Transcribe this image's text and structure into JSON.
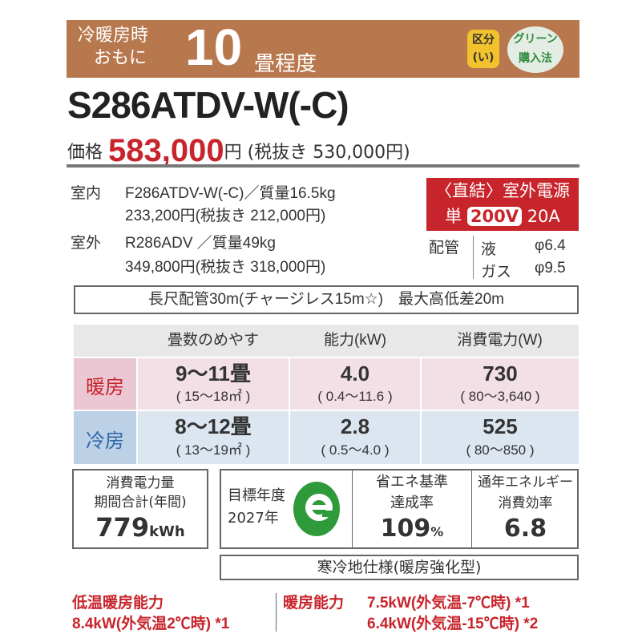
{
  "header": {
    "line1": "冷暖房時",
    "line2": "おもに",
    "tatami": "10",
    "tatami_unit": "畳程度",
    "badge_category": [
      "区分",
      "(い)"
    ],
    "badge_green": [
      "グリーン",
      "購入法"
    ]
  },
  "model": "S286ATDV-W(-C)",
  "price": {
    "label": "価格",
    "value": "583,000",
    "yen": "円",
    "tax_excl": "(税抜き 530,000円)"
  },
  "indoor": {
    "label": "室内",
    "model": "F286ATDV-W(-C)／質量16.5kg",
    "price": "233,200円(税抜き 212,000円)"
  },
  "outdoor": {
    "label": "室外",
    "model": "R286ADV ／質量49kg",
    "price": "349,800円(税抜き 318,000円)"
  },
  "power": {
    "line1": "〈直結〉室外電源",
    "phase": "単",
    "voltage": "200V",
    "amp": "20A"
  },
  "piping": {
    "label": "配管",
    "liquid_label": "液",
    "liquid": "φ6.4",
    "gas_label": "ガス",
    "gas": "φ9.5"
  },
  "long_pipe": "長尺配管30m(チャージレス15m☆)　最大高低差20m",
  "table": {
    "headers": [
      "畳数のめやす",
      "能力(kW)",
      "消費電力(W)"
    ],
    "rows": [
      {
        "label": "暖房",
        "tatami": "9〜11畳",
        "tatami_m2": "( 15〜18㎡ )",
        "capacity": "4.0",
        "capacity_range": "( 0.4〜11.6 )",
        "power": "730",
        "power_range": "( 80〜3,640 )"
      },
      {
        "label": "冷房",
        "tatami": "8〜12畳",
        "tatami_m2": "( 13〜19㎡ )",
        "capacity": "2.8",
        "capacity_range": "( 0.5〜4.0 )",
        "power": "525",
        "power_range": "( 80〜850 )"
      }
    ]
  },
  "annual": {
    "l1": "消費電力量",
    "l2": "期間合計(年間)",
    "value": "779",
    "unit": "kWh"
  },
  "target": {
    "l1": "目標年度",
    "l2": "2027年"
  },
  "achievement": {
    "l1": "省エネ基準",
    "l2": "達成率",
    "value": "109",
    "unit": "%"
  },
  "apf": {
    "l1": "通年エネルギー",
    "l2": "消費効率",
    "value": "6.8"
  },
  "cold_spec": "寒冷地仕様(暖房強化型)",
  "footer": {
    "low_label": "低温暖房能力",
    "low_value": "8.4kW(外気温2℃時) *1",
    "heat_label": "暖房能力",
    "heat1": "7.5kW(外気温-7℃時) *1",
    "heat2": "6.4kW(外気温-15℃時) *2"
  },
  "colors": {
    "band": "#b8784e",
    "red": "#c8242b",
    "heat_row": "#f3dfe6",
    "cool_row": "#dce6f1",
    "eco_green": "#2e9a3a"
  }
}
